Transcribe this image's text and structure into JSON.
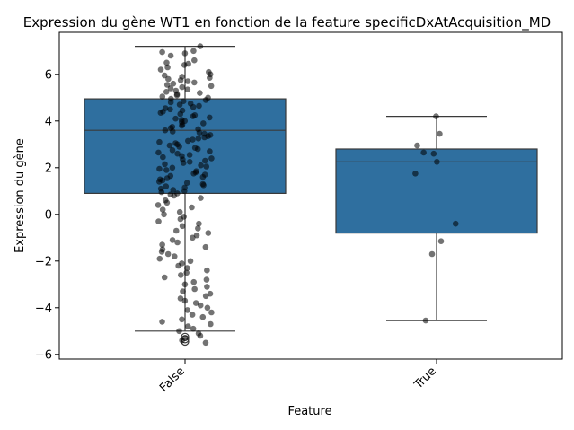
{
  "chart_data": {
    "type": "box",
    "title": "Expression du gène WT1 en fonction de la feature specificDxAtAcquisition_MD",
    "xlabel": "Feature",
    "ylabel": "Expression du gène",
    "categories": [
      "False",
      "True"
    ],
    "ylim": [
      -6.2,
      7.8
    ],
    "yticks": [
      -6,
      -4,
      -2,
      0,
      2,
      4,
      6
    ],
    "box_color": "#2f6f9f",
    "point_color": "#000000",
    "grid": false,
    "boxes": [
      {
        "category": "False",
        "whisker_low": -5.0,
        "q1": 0.9,
        "median": 3.6,
        "q3": 4.95,
        "whisker_high": 7.2,
        "outliers": [
          -5.25,
          -5.35,
          -5.45
        ]
      },
      {
        "category": "True",
        "whisker_low": -4.55,
        "q1": -0.8,
        "median": 2.25,
        "q3": 2.8,
        "whisker_high": 4.2,
        "outliers": []
      }
    ],
    "points": [
      {
        "category": "True",
        "values": [
          4.2,
          3.45,
          2.95,
          2.65,
          2.6,
          2.25,
          1.75,
          -0.4,
          -1.15,
          -1.7,
          -4.55
        ]
      },
      {
        "category": "False",
        "values": [
          7.2,
          7.0,
          6.95,
          6.9,
          6.8,
          6.6,
          6.5,
          6.45,
          6.4,
          6.3,
          6.2,
          6.1,
          6.0,
          5.95,
          5.9,
          5.85,
          5.8,
          5.75,
          5.7,
          5.65,
          5.6,
          5.55,
          5.5,
          5.45,
          5.4,
          5.35,
          5.3,
          5.25,
          5.2,
          5.15,
          5.1,
          5.05,
          5.0,
          4.95,
          4.9,
          4.85,
          4.8,
          4.75,
          4.7,
          4.65,
          4.6,
          4.55,
          4.5,
          4.45,
          4.4,
          4.35,
          4.3,
          4.25,
          4.2,
          4.15,
          4.1,
          4.05,
          4.0,
          3.95,
          3.9,
          3.85,
          3.8,
          3.75,
          3.7,
          3.65,
          3.6,
          3.55,
          3.5,
          3.45,
          3.4,
          3.35,
          3.3,
          3.25,
          3.2,
          3.15,
          3.1,
          3.05,
          3.0,
          2.95,
          2.9,
          2.85,
          2.8,
          2.75,
          2.7,
          2.65,
          2.6,
          2.55,
          2.5,
          2.45,
          2.4,
          2.35,
          2.3,
          2.25,
          2.2,
          2.15,
          2.1,
          2.05,
          2.0,
          1.95,
          1.9,
          1.85,
          1.8,
          1.75,
          1.7,
          1.65,
          1.6,
          1.55,
          1.5,
          1.45,
          1.4,
          1.35,
          1.3,
          1.25,
          1.2,
          1.15,
          1.1,
          1.05,
          1.0,
          0.95,
          0.9,
          0.85,
          0.8,
          0.7,
          0.6,
          0.5,
          0.4,
          0.3,
          0.2,
          0.1,
          0.0,
          -0.1,
          -0.2,
          -0.3,
          -0.4,
          -0.5,
          -0.6,
          -0.7,
          -0.8,
          -0.9,
          -1.0,
          -1.1,
          -1.2,
          -1.3,
          -1.4,
          -1.5,
          -1.6,
          -1.7,
          -1.8,
          -1.9,
          -2.0,
          -2.1,
          -2.2,
          -2.3,
          -2.4,
          -2.5,
          -2.6,
          -2.7,
          -2.8,
          -2.9,
          -3.0,
          -3.1,
          -3.2,
          -3.3,
          -3.4,
          -3.5,
          -3.6,
          -3.7,
          -3.8,
          -3.9,
          -4.0,
          -4.1,
          -4.2,
          -4.3,
          -4.4,
          -4.5,
          -4.6,
          -4.7,
          -4.8,
          -4.9,
          -5.0,
          -5.1,
          -5.2,
          -5.3,
          -5.4,
          -5.5
        ]
      }
    ]
  }
}
